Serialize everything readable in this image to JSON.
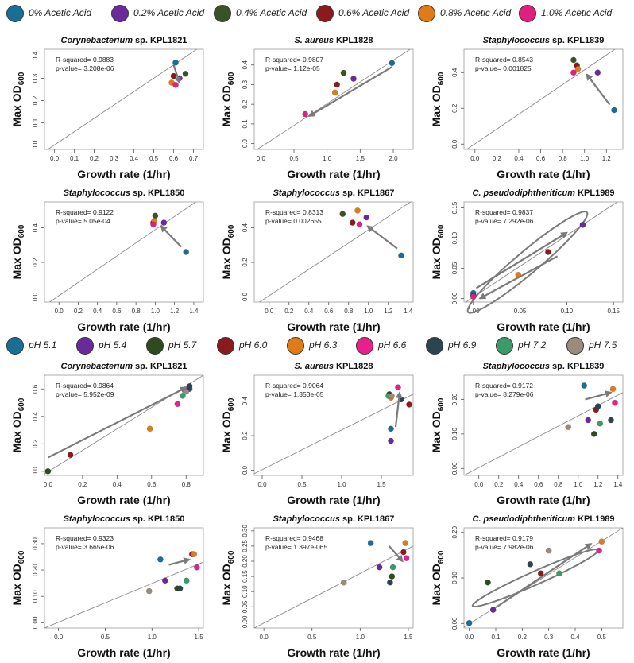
{
  "legends": [
    {
      "items": [
        {
          "label": "0% Acetic Acid",
          "color": "#1a6e95"
        },
        {
          "label": "0.2% Acetic Acid",
          "color": "#6b2a9c"
        },
        {
          "label": "0.4% Acetic Acid",
          "color": "#3a5326"
        },
        {
          "label": "0.6% Acetic Acid",
          "color": "#8b1a1f"
        },
        {
          "label": "0.8% Acetic Acid",
          "color": "#e07c18"
        },
        {
          "label": "1.0% Acetic Acid",
          "color": "#e0207e"
        }
      ]
    },
    {
      "items": [
        {
          "label": "pH 5.1",
          "color": "#1a6e95"
        },
        {
          "label": "pH 5.4",
          "color": "#6b2a9c"
        },
        {
          "label": "pH 5.7",
          "color": "#2f4a1e"
        },
        {
          "label": "pH 6.0",
          "color": "#8b1a1f"
        },
        {
          "label": "pH 6.3",
          "color": "#e07c18"
        },
        {
          "label": "pH 6.6",
          "color": "#e8208e"
        },
        {
          "label": "pH 6.9",
          "color": "#2b4550"
        },
        {
          "label": "pH 7.2",
          "color": "#3a9a68"
        },
        {
          "label": "pH 7.5",
          "color": "#9a8c7c"
        }
      ]
    }
  ],
  "chart_data": [
    {
      "type": "scatter",
      "group": 0,
      "title_italic": "Corynebacterium",
      "title_rest": " sp. KPL1821",
      "xlabel": "Growth rate (1/hr)",
      "ylabel": "Max OD",
      "ylabel_sub": "600",
      "xlim": [
        -0.05,
        0.75
      ],
      "ylim": [
        -0.02,
        0.43
      ],
      "xticks": [
        "0.0",
        "0.1",
        "0.2",
        "0.3",
        "0.4",
        "0.5",
        "0.6",
        "0.7"
      ],
      "yticks": [
        "0.0",
        "0.1",
        "0.2",
        "0.3",
        "0.4"
      ],
      "r_squared": "R-squared= 0.9883",
      "p_value": "p-value= 3.208e-06",
      "line": [
        [
          -0.05,
          -0.03
        ],
        [
          0.75,
          0.45
        ]
      ],
      "points": [
        [
          0.61,
          0.37,
          0
        ],
        [
          0.63,
          0.3,
          1
        ],
        [
          0.66,
          0.32,
          2
        ],
        [
          0.6,
          0.31,
          3
        ],
        [
          0.59,
          0.28,
          4
        ],
        [
          0.61,
          0.27,
          5
        ]
      ],
      "arrows": [
        [
          0.6,
          0.36,
          0.63,
          0.28
        ]
      ]
    },
    {
      "type": "scatter",
      "group": 0,
      "title_italic": "S. aureus",
      "title_rest": " KPL1828",
      "xlabel": "Growth rate (1/hr)",
      "ylabel": "Max OD",
      "ylabel_sub": "600",
      "xlim": [
        -0.1,
        2.3
      ],
      "ylim": [
        -0.03,
        0.48
      ],
      "xticks": [
        "0.0",
        "0.5",
        "1.0",
        "1.5",
        "2.0"
      ],
      "yticks": [
        "0.0",
        "0.1",
        "0.2",
        "0.3",
        "0.4"
      ],
      "r_squared": "R-squared= 0.9807",
      "p_value": "p-value= 1.12e-05",
      "line": [
        [
          -0.1,
          -0.04
        ],
        [
          2.3,
          0.49
        ]
      ],
      "points": [
        [
          1.98,
          0.41,
          0
        ],
        [
          1.4,
          0.33,
          1
        ],
        [
          1.25,
          0.36,
          2
        ],
        [
          1.15,
          0.3,
          3
        ],
        [
          1.12,
          0.26,
          4
        ],
        [
          0.67,
          0.15,
          5
        ]
      ],
      "arrows": [
        [
          1.98,
          0.39,
          0.73,
          0.14
        ]
      ]
    },
    {
      "type": "scatter",
      "group": 0,
      "title_italic": "Staphylococcus",
      "title_rest": " sp. KPL1839",
      "xlabel": "Growth rate (1/hr)",
      "ylabel": "Max OD",
      "ylabel_sub": "600",
      "xlim": [
        -0.1,
        1.35
      ],
      "ylim": [
        -0.03,
        0.53
      ],
      "xticks": [
        "0.0",
        "0.2",
        "0.4",
        "0.6",
        "0.8",
        "1.0",
        "1.2"
      ],
      "yticks": [
        "0.0",
        "0.2",
        "0.4"
      ],
      "r_squared": "R-squared= 0.8543",
      "p_value": "p-value= 0.001825",
      "line": [
        [
          -0.1,
          -0.04
        ],
        [
          1.35,
          0.56
        ]
      ],
      "points": [
        [
          1.27,
          0.19,
          0
        ],
        [
          1.12,
          0.4,
          1
        ],
        [
          0.9,
          0.47,
          2
        ],
        [
          0.93,
          0.44,
          3
        ],
        [
          0.94,
          0.42,
          4
        ],
        [
          0.9,
          0.4,
          5
        ]
      ],
      "arrows": [
        [
          1.23,
          0.22,
          1.02,
          0.39
        ]
      ]
    },
    {
      "type": "scatter",
      "group": 0,
      "title_italic": "Staphylococcus",
      "title_rest": " sp. KPL1850",
      "xlabel": "Growth rate (1/hr)",
      "ylabel": "Max OD",
      "ylabel_sub": "600",
      "xlim": [
        -0.15,
        1.5
      ],
      "ylim": [
        -0.03,
        0.55
      ],
      "xticks": [
        "0.0",
        "0.2",
        "0.4",
        "0.6",
        "0.8",
        "1.0",
        "1.2",
        "1.4"
      ],
      "yticks": [
        "0.0",
        "0.2",
        "0.4"
      ],
      "r_squared": "R-squared= 0.9122",
      "p_value": "p-value= 5.05e-04",
      "line": [
        [
          -0.15,
          -0.05
        ],
        [
          1.5,
          0.58
        ]
      ],
      "points": [
        [
          1.32,
          0.26,
          0
        ],
        [
          1.09,
          0.43,
          1
        ],
        [
          1.0,
          0.47,
          2
        ],
        [
          0.98,
          0.43,
          3
        ],
        [
          0.99,
          0.44,
          4
        ],
        [
          0.98,
          0.42,
          5
        ]
      ],
      "arrows": [
        [
          1.27,
          0.29,
          1.06,
          0.41
        ]
      ]
    },
    {
      "type": "scatter",
      "group": 0,
      "title_italic": "Staphylococcus",
      "title_rest": " sp. KPL1867",
      "xlabel": "Growth rate (1/hr)",
      "ylabel": "Max OD",
      "ylabel_sub": "600",
      "xlim": [
        -0.15,
        1.45
      ],
      "ylim": [
        -0.03,
        0.55
      ],
      "xticks": [
        "0.0",
        "0.2",
        "0.4",
        "0.6",
        "0.8",
        "1.0",
        "1.2",
        "1.4"
      ],
      "yticks": [
        "0.0",
        "0.2",
        "0.4"
      ],
      "r_squared": "R-squared= 0.8313",
      "p_value": "p-value= 0.002655",
      "line": [
        [
          -0.15,
          -0.05
        ],
        [
          1.45,
          0.56
        ]
      ],
      "points": [
        [
          1.33,
          0.24,
          0
        ],
        [
          0.98,
          0.46,
          1
        ],
        [
          0.74,
          0.48,
          2
        ],
        [
          0.84,
          0.43,
          3
        ],
        [
          0.89,
          0.5,
          4
        ],
        [
          0.91,
          0.42,
          5
        ]
      ],
      "arrows": [
        [
          1.29,
          0.28,
          0.99,
          0.41
        ]
      ]
    },
    {
      "type": "scatter",
      "group": 0,
      "title_italic": "C. pseudodiphtheriticum",
      "title_rest": " KPL1989",
      "xlabel": "Growth rate (1/hr)",
      "ylabel": "Max OD",
      "ylabel_sub": "600",
      "xlim": [
        -0.01,
        0.16
      ],
      "ylim": [
        -0.006,
        0.16
      ],
      "xticks": [
        "0.00",
        "0.05",
        "0.10",
        "0.15"
      ],
      "yticks": [
        "0.00",
        "0.05",
        "0.10",
        "0.15"
      ],
      "r_squared": "R-squared= 0.9837",
      "p_value": "p-value= 7.292e-06",
      "line": [
        [
          -0.01,
          -0.008
        ],
        [
          0.16,
          0.166
        ]
      ],
      "points": [
        [
          0.0,
          0.009,
          0
        ],
        [
          0.117,
          0.122,
          1
        ],
        [
          0.0,
          0.005,
          2
        ],
        [
          0.08,
          0.077,
          3
        ],
        [
          0.048,
          0.039,
          4
        ],
        [
          0.0,
          0.003,
          5
        ]
      ],
      "arrows": [
        [
          0.003,
          0.017,
          0.1,
          0.109
        ],
        [
          0.09,
          0.07,
          0.007,
          0.0
        ]
      ],
      "ellipses": [
        [
          0.058,
          0.06,
          0.083,
          0.012,
          -40
        ]
      ]
    },
    {
      "type": "scatter",
      "group": 1,
      "title_italic": "Corynebacterium",
      "title_rest": " sp. KPL1821",
      "xlabel": "Growth rate (1/hr)",
      "ylabel": "Max OD",
      "ylabel_sub": "600",
      "xlim": [
        -0.02,
        0.9
      ],
      "ylim": [
        -0.03,
        0.7
      ],
      "xticks": [
        "0.0",
        "0.2",
        "0.4",
        "0.6",
        "0.8"
      ],
      "yticks": [
        "0.0",
        "0.2",
        "0.4",
        "0.6"
      ],
      "r_squared": "R-squared= 0.9864",
      "p_value": "p-value= 5.952e-09",
      "line": [
        [
          -0.02,
          -0.02
        ],
        [
          0.9,
          0.7
        ]
      ],
      "points": [
        [
          0.82,
          0.6,
          0
        ],
        [
          0.81,
          0.6,
          1
        ],
        [
          0.0,
          0.0,
          2
        ],
        [
          0.13,
          0.12,
          3
        ],
        [
          0.59,
          0.31,
          4
        ],
        [
          0.75,
          0.49,
          5
        ],
        [
          0.82,
          0.62,
          6
        ],
        [
          0.78,
          0.55,
          7
        ],
        [
          0.8,
          0.58,
          8
        ]
      ],
      "arrows": [
        [
          0.0,
          0.1,
          0.8,
          0.61
        ]
      ]
    },
    {
      "type": "scatter",
      "group": 1,
      "title_italic": "S. aureus",
      "title_rest": " KPL1828",
      "xlabel": "Growth rate (1/hr)",
      "ylabel": "Max OD",
      "ylabel_sub": "600",
      "xlim": [
        -0.1,
        1.9
      ],
      "ylim": [
        -0.03,
        0.55
      ],
      "xticks": [
        "0.0",
        "0.5",
        "1.0",
        "1.5"
      ],
      "yticks": [
        "0.0",
        "0.2",
        "0.4"
      ],
      "r_squared": "R-squared= 0.9064",
      "p_value": "p-value= 1.353e-05",
      "line": [
        [
          -0.1,
          -0.02
        ],
        [
          1.9,
          0.44
        ]
      ],
      "points": [
        [
          1.62,
          0.24,
          0
        ],
        [
          1.62,
          0.17,
          1
        ],
        [
          1.6,
          0.44,
          2
        ],
        [
          1.85,
          0.38,
          3
        ],
        [
          1.62,
          0.42,
          4
        ],
        [
          1.71,
          0.48,
          5
        ],
        [
          1.75,
          0.41,
          6
        ],
        [
          1.59,
          0.43,
          7
        ],
        [
          1.63,
          0.43,
          8
        ]
      ],
      "arrows": [
        [
          1.68,
          0.25,
          1.73,
          0.45
        ]
      ]
    },
    {
      "type": "scatter",
      "group": 1,
      "title_italic": "Staphylococcus",
      "title_rest": " sp. KPL1839",
      "xlabel": "Growth rate (1/hr)",
      "ylabel": "Max OD",
      "ylabel_sub": "600",
      "xlim": [
        -0.15,
        1.45
      ],
      "ylim": [
        -0.02,
        0.27
      ],
      "xticks": [
        "0.0",
        "0.2",
        "0.4",
        "0.6",
        "0.8",
        "1.0",
        "1.2",
        "1.4"
      ],
      "yticks": [
        "0.00",
        "0.10",
        "0.20"
      ],
      "r_squared": "R-squared= 0.9172",
      "p_value": "p-value= 8.279e-06",
      "line": [
        [
          -0.15,
          -0.02
        ],
        [
          1.45,
          0.22
        ]
      ],
      "points": [
        [
          1.06,
          0.24,
          0
        ],
        [
          1.1,
          0.14,
          1
        ],
        [
          1.16,
          0.1,
          2
        ],
        [
          1.18,
          0.17,
          3
        ],
        [
          1.35,
          0.23,
          4
        ],
        [
          1.37,
          0.19,
          5
        ],
        [
          1.2,
          0.18,
          6
        ],
        [
          1.22,
          0.13,
          7
        ],
        [
          0.9,
          0.12,
          8
        ],
        [
          1.33,
          0.14,
          6
        ]
      ],
      "arrows": [
        [
          1.07,
          0.2,
          1.33,
          0.22
        ]
      ]
    },
    {
      "type": "scatter",
      "group": 1,
      "title_italic": "Staphylococcus",
      "title_rest": " sp. KPL1850",
      "xlabel": "Growth rate (1/hr)",
      "ylabel": "Max OD",
      "ylabel_sub": "600",
      "xlim": [
        -0.15,
        1.55
      ],
      "ylim": [
        -0.02,
        0.36
      ],
      "xticks": [
        "0.0",
        "0.5",
        "1.0",
        "1.5"
      ],
      "yticks": [
        "0.00",
        "0.10",
        "0.20",
        "0.30"
      ],
      "r_squared": "R-squared= 0.9323",
      "p_value": "p-value= 3.665e-06",
      "line": [
        [
          -0.15,
          -0.02
        ],
        [
          1.55,
          0.23
        ]
      ],
      "points": [
        [
          1.09,
          0.24,
          0
        ],
        [
          1.14,
          0.16,
          1
        ],
        [
          1.27,
          0.13,
          2
        ],
        [
          1.43,
          0.26,
          3
        ],
        [
          1.45,
          0.26,
          4
        ],
        [
          1.48,
          0.21,
          5
        ],
        [
          1.3,
          0.13,
          6
        ],
        [
          1.37,
          0.16,
          7
        ],
        [
          0.97,
          0.12,
          8
        ]
      ],
      "arrows": [
        [
          1.18,
          0.22,
          1.4,
          0.24
        ]
      ]
    },
    {
      "type": "scatter",
      "group": 1,
      "title_italic": "Staphylococcus",
      "title_rest": " sp. KPL1867",
      "xlabel": "Growth rate (1/hr)",
      "ylabel": "Max OD",
      "ylabel_sub": "600",
      "xlim": [
        -0.1,
        1.55
      ],
      "ylim": [
        -0.02,
        0.31
      ],
      "xticks": [
        "0.0",
        "0.5",
        "1.0",
        "1.5"
      ],
      "yticks": [
        "0.00",
        "0.05",
        "0.10",
        "0.15",
        "0.20",
        "0.25",
        "0.30"
      ],
      "r_squared": "R-squared= 0.9468",
      "p_value": "p-value= 1.397e-065",
      "line": [
        [
          -0.1,
          -0.02
        ],
        [
          1.55,
          0.25
        ]
      ],
      "points": [
        [
          1.11,
          0.26,
          0
        ],
        [
          1.2,
          0.18,
          1
        ],
        [
          1.33,
          0.15,
          2
        ],
        [
          1.45,
          0.23,
          3
        ],
        [
          1.47,
          0.26,
          4
        ],
        [
          1.48,
          0.21,
          5
        ],
        [
          1.31,
          0.13,
          6
        ],
        [
          1.34,
          0.18,
          7
        ],
        [
          0.83,
          0.13,
          8
        ]
      ],
      "arrows": [
        [
          1.3,
          0.25,
          1.44,
          0.2
        ]
      ]
    },
    {
      "type": "scatter",
      "group": 1,
      "title_italic": "C. pseudodiphtheriticum",
      "title_rest": " KPL1989",
      "xlabel": "Growth rate (1/hr)",
      "ylabel": "Max OD",
      "ylabel_sub": "600",
      "xlim": [
        -0.02,
        0.58
      ],
      "ylim": [
        -0.01,
        0.21
      ],
      "xticks": [
        "0.0",
        "0.1",
        "0.2",
        "0.3",
        "0.4",
        "0.5"
      ],
      "yticks": [
        "0.00",
        "0.10",
        "0.20"
      ],
      "r_squared": "R-squared= 0.9179",
      "p_value": "p-value= 7.982e-06",
      "line": [
        [
          -0.02,
          -0.008
        ],
        [
          0.58,
          0.21
        ]
      ],
      "points": [
        [
          0.0,
          0.001,
          0
        ],
        [
          0.09,
          0.03,
          1
        ],
        [
          0.07,
          0.09,
          2
        ],
        [
          0.27,
          0.11,
          3
        ],
        [
          0.5,
          0.18,
          4
        ],
        [
          0.49,
          0.16,
          5
        ],
        [
          0.23,
          0.13,
          6
        ],
        [
          0.34,
          0.11,
          7
        ],
        [
          0.3,
          0.16,
          8
        ]
      ],
      "arrows": [
        [
          0.1,
          0.035,
          0.46,
          0.175
        ]
      ],
      "ellipses": [
        [
          0.25,
          0.1,
          0.26,
          0.025,
          -24
        ]
      ]
    }
  ]
}
